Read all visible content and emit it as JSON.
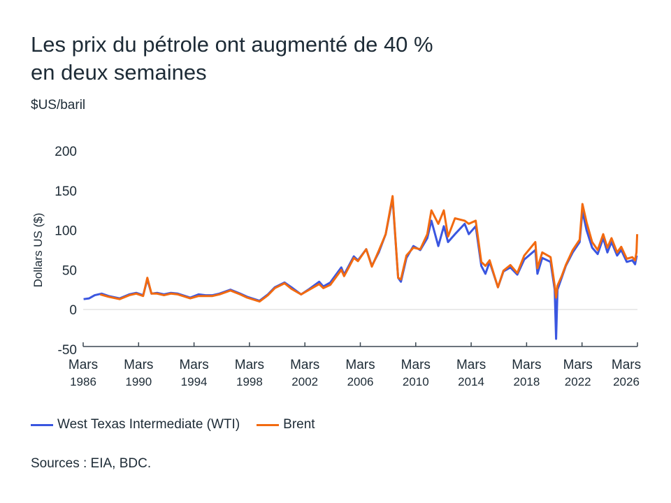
{
  "title_line1": "Les prix du pétrole ont augmenté de 40 %",
  "title_line2": "en deux semaines",
  "unit": "$US/baril",
  "source": "Sources : EIA, BDC.",
  "chart_data": {
    "type": "line",
    "ylabel": "Dollars US ($)",
    "ylim": [
      -50,
      200
    ],
    "yticks": [
      -50,
      0,
      50,
      100,
      150,
      200
    ],
    "xlim": [
      1986.17,
      2026.17
    ],
    "xticks": [
      {
        "x": 1986.17,
        "l1": "Mars",
        "l2": "1986"
      },
      {
        "x": 1990.17,
        "l1": "Mars",
        "l2": "1990"
      },
      {
        "x": 1994.17,
        "l1": "Mars",
        "l2": "1994"
      },
      {
        "x": 1998.17,
        "l1": "Mars",
        "l2": "1998"
      },
      {
        "x": 2002.17,
        "l1": "Mars",
        "l2": "2002"
      },
      {
        "x": 2006.17,
        "l1": "Mars",
        "l2": "2006"
      },
      {
        "x": 2010.17,
        "l1": "Mars",
        "l2": "2010"
      },
      {
        "x": 2014.17,
        "l1": "Mars",
        "l2": "2014"
      },
      {
        "x": 2018.17,
        "l1": "Mars",
        "l2": "2018"
      },
      {
        "x": 2022.17,
        "l1": "Mars",
        "l2": "2022"
      },
      {
        "x": 2026.17,
        "l1": "Mars",
        "l2": "2026"
      }
    ],
    "grid": "zero line only",
    "legend": "bottom",
    "series": [
      {
        "name": "West Texas Intermediate (WTI)",
        "color": "#3a56e0",
        "points": [
          [
            1986.2,
            13
          ],
          [
            1986.6,
            14
          ],
          [
            1987,
            18
          ],
          [
            1987.5,
            20
          ],
          [
            1988,
            17
          ],
          [
            1988.8,
            14
          ],
          [
            1989.5,
            19
          ],
          [
            1990,
            21
          ],
          [
            1990.5,
            18
          ],
          [
            1990.8,
            38
          ],
          [
            1991.1,
            20
          ],
          [
            1991.5,
            21
          ],
          [
            1992,
            19
          ],
          [
            1992.5,
            21
          ],
          [
            1993,
            20
          ],
          [
            1993.9,
            15
          ],
          [
            1994.5,
            19
          ],
          [
            1995,
            18
          ],
          [
            1995.5,
            18
          ],
          [
            1996,
            20
          ],
          [
            1996.8,
            25
          ],
          [
            1997.5,
            20
          ],
          [
            1998,
            16
          ],
          [
            1998.9,
            11
          ],
          [
            1999.5,
            19
          ],
          [
            2000,
            28
          ],
          [
            2000.7,
            34
          ],
          [
            2001.2,
            28
          ],
          [
            2001.9,
            19
          ],
          [
            2002.5,
            26
          ],
          [
            2003.2,
            35
          ],
          [
            2003.5,
            29
          ],
          [
            2004,
            34
          ],
          [
            2004.8,
            53
          ],
          [
            2005,
            44
          ],
          [
            2005.7,
            67
          ],
          [
            2006,
            62
          ],
          [
            2006.6,
            76
          ],
          [
            2007,
            55
          ],
          [
            2007.5,
            72
          ],
          [
            2008,
            95
          ],
          [
            2008.5,
            140
          ],
          [
            2008.9,
            40
          ],
          [
            2009.1,
            35
          ],
          [
            2009.5,
            65
          ],
          [
            2010,
            80
          ],
          [
            2010.5,
            75
          ],
          [
            2011,
            90
          ],
          [
            2011.3,
            112
          ],
          [
            2011.8,
            80
          ],
          [
            2012.2,
            105
          ],
          [
            2012.5,
            85
          ],
          [
            2013,
            95
          ],
          [
            2013.7,
            108
          ],
          [
            2014,
            95
          ],
          [
            2014.5,
            105
          ],
          [
            2014.9,
            55
          ],
          [
            2015.2,
            45
          ],
          [
            2015.5,
            60
          ],
          [
            2016.1,
            28
          ],
          [
            2016.5,
            48
          ],
          [
            2017,
            53
          ],
          [
            2017.5,
            44
          ],
          [
            2018,
            63
          ],
          [
            2018.8,
            75
          ],
          [
            2018.95,
            45
          ],
          [
            2019.3,
            65
          ],
          [
            2019.9,
            60
          ],
          [
            2020.2,
            25
          ],
          [
            2020.3,
            -37
          ],
          [
            2020.4,
            25
          ],
          [
            2020.7,
            40
          ],
          [
            2021,
            55
          ],
          [
            2021.5,
            72
          ],
          [
            2022,
            85
          ],
          [
            2022.2,
            124
          ],
          [
            2022.5,
            100
          ],
          [
            2022.9,
            78
          ],
          [
            2023.3,
            70
          ],
          [
            2023.7,
            90
          ],
          [
            2024,
            72
          ],
          [
            2024.3,
            85
          ],
          [
            2024.7,
            68
          ],
          [
            2025,
            75
          ],
          [
            2025.4,
            60
          ],
          [
            2025.8,
            62
          ],
          [
            2026,
            57
          ],
          [
            2026.12,
            68
          ]
        ]
      },
      {
        "name": "Brent",
        "color": "#f26a10",
        "points": [
          [
            1987.4,
            19
          ],
          [
            1988,
            16
          ],
          [
            1988.8,
            13
          ],
          [
            1989.5,
            18
          ],
          [
            1990,
            20
          ],
          [
            1990.5,
            17
          ],
          [
            1990.8,
            40
          ],
          [
            1991.1,
            20
          ],
          [
            1991.5,
            20
          ],
          [
            1992,
            18
          ],
          [
            1992.5,
            20
          ],
          [
            1993,
            19
          ],
          [
            1993.9,
            14
          ],
          [
            1994.5,
            17
          ],
          [
            1995,
            17
          ],
          [
            1995.5,
            17
          ],
          [
            1996,
            19
          ],
          [
            1996.8,
            24
          ],
          [
            1997.5,
            19
          ],
          [
            1998,
            15
          ],
          [
            1998.9,
            10
          ],
          [
            1999.5,
            18
          ],
          [
            2000,
            27
          ],
          [
            2000.7,
            33
          ],
          [
            2001.2,
            26
          ],
          [
            2001.9,
            19
          ],
          [
            2002.5,
            25
          ],
          [
            2003.2,
            32
          ],
          [
            2003.5,
            27
          ],
          [
            2004,
            31
          ],
          [
            2004.8,
            50
          ],
          [
            2005,
            42
          ],
          [
            2005.7,
            65
          ],
          [
            2006,
            61
          ],
          [
            2006.6,
            76
          ],
          [
            2007,
            54
          ],
          [
            2007.5,
            74
          ],
          [
            2008,
            95
          ],
          [
            2008.5,
            143
          ],
          [
            2008.9,
            40
          ],
          [
            2009.1,
            38
          ],
          [
            2009.5,
            68
          ],
          [
            2010,
            78
          ],
          [
            2010.5,
            76
          ],
          [
            2011,
            95
          ],
          [
            2011.3,
            125
          ],
          [
            2011.8,
            108
          ],
          [
            2012.2,
            125
          ],
          [
            2012.5,
            92
          ],
          [
            2013,
            115
          ],
          [
            2013.7,
            112
          ],
          [
            2014,
            108
          ],
          [
            2014.5,
            112
          ],
          [
            2014.9,
            60
          ],
          [
            2015.2,
            55
          ],
          [
            2015.5,
            62
          ],
          [
            2016.1,
            28
          ],
          [
            2016.5,
            49
          ],
          [
            2017,
            56
          ],
          [
            2017.5,
            46
          ],
          [
            2018,
            68
          ],
          [
            2018.8,
            85
          ],
          [
            2018.95,
            52
          ],
          [
            2019.3,
            72
          ],
          [
            2019.9,
            66
          ],
          [
            2020.2,
            30
          ],
          [
            2020.3,
            15
          ],
          [
            2020.4,
            30
          ],
          [
            2020.7,
            42
          ],
          [
            2021,
            56
          ],
          [
            2021.5,
            75
          ],
          [
            2022,
            88
          ],
          [
            2022.2,
            133
          ],
          [
            2022.5,
            110
          ],
          [
            2022.9,
            85
          ],
          [
            2023.3,
            75
          ],
          [
            2023.7,
            95
          ],
          [
            2024,
            78
          ],
          [
            2024.3,
            90
          ],
          [
            2024.7,
            72
          ],
          [
            2025,
            79
          ],
          [
            2025.4,
            64
          ],
          [
            2025.8,
            66
          ],
          [
            2026,
            62
          ],
          [
            2026.1,
            72
          ],
          [
            2026.15,
            95
          ]
        ]
      }
    ]
  }
}
